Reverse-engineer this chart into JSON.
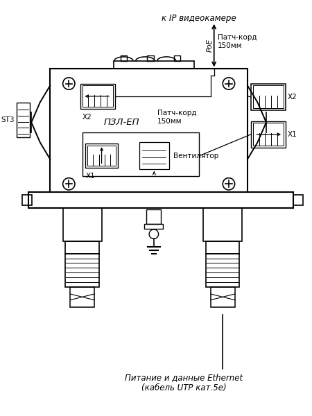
{
  "bg_color": "#ffffff",
  "lc": "#000000",
  "title_top": "к IP видеокамере",
  "label_poe": "PoE",
  "label_patch_top": "Патч-корд\n150мм",
  "label_patch_mid": "Патч-корд\n150мм",
  "label_pzl": "ПЗЛ-ЕП",
  "label_x1l": "X1",
  "label_x2l": "X2",
  "label_x1r": "X1",
  "label_x2r": "X2",
  "label_st3": "ST3",
  "label_fan": "Вентилятор",
  "label_bot1": "Питание и данные Ethernet",
  "label_bot2": "(кабель UTP кат.5e)"
}
